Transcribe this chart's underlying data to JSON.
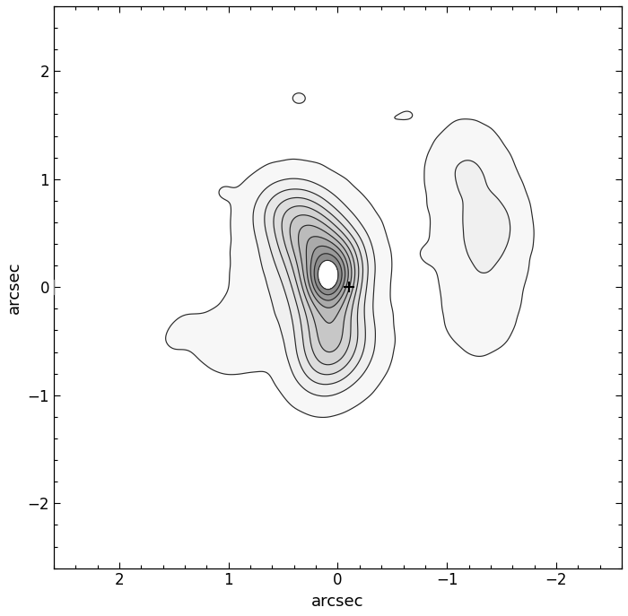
{
  "title": "",
  "xlabel": "arcsec",
  "ylabel": "arcsec",
  "xlim": [
    2.6,
    -2.6
  ],
  "ylim": [
    -2.6,
    2.6
  ],
  "xticks": [
    2,
    1,
    0,
    -1,
    -2
  ],
  "yticks": [
    -2,
    -1,
    0,
    1,
    2
  ],
  "figsize": [
    7.0,
    6.87
  ],
  "dpi": 100,
  "cross_x": -0.1,
  "cross_y": 0.0,
  "band_height": 0.13,
  "band_color": "#888888",
  "band_alpha": 0.85,
  "contour_color": "#2a2a2a",
  "contour_linewidth": 0.85,
  "background_color": "#ffffff",
  "noise_seed": 77
}
